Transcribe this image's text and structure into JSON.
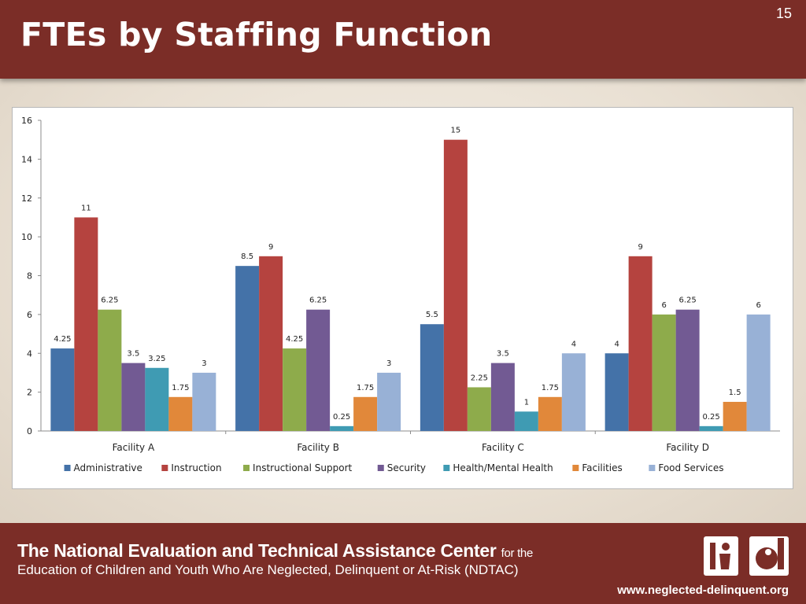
{
  "slide": {
    "title": "FTEs by Staffing Function",
    "number": "15"
  },
  "chart_data": {
    "type": "bar",
    "categories": [
      "Facility A",
      "Facility B",
      "Facility C",
      "Facility D"
    ],
    "series": [
      {
        "name": "Administrative",
        "color": "#4472a8",
        "values": [
          4.25,
          8.5,
          5.5,
          4
        ]
      },
      {
        "name": "Instruction",
        "color": "#b5433f",
        "values": [
          11,
          9,
          15,
          9
        ]
      },
      {
        "name": "Instructional Support",
        "color": "#8eab4b",
        "values": [
          6.25,
          4.25,
          2.25,
          6
        ]
      },
      {
        "name": "Security",
        "color": "#725a93",
        "values": [
          3.5,
          6.25,
          3.5,
          6.25
        ]
      },
      {
        "name": "Health/Mental Health",
        "color": "#3f9bb3",
        "values": [
          3.25,
          0.25,
          1,
          0.25
        ]
      },
      {
        "name": "Facilities",
        "color": "#e1883a",
        "values": [
          1.75,
          1.75,
          1.75,
          1.5
        ]
      },
      {
        "name": "Food Services",
        "color": "#98b1d6",
        "values": [
          3,
          3,
          4,
          6
        ]
      }
    ],
    "ylim": [
      0,
      16
    ],
    "yticks": [
      0,
      2,
      4,
      6,
      8,
      10,
      12,
      14,
      16
    ],
    "grid": false,
    "legend_position": "bottom",
    "data_labels": true
  },
  "footer": {
    "org_name": "The National Evaluation and Technical Assistance Center",
    "org_suffix": "for the",
    "org_line2": "Education of Children and Youth Who Are Neglected, Delinquent or At-Risk (NDTAC)",
    "url": "www.neglected-delinquent.org",
    "logo_icon": "ndtac-logo"
  }
}
